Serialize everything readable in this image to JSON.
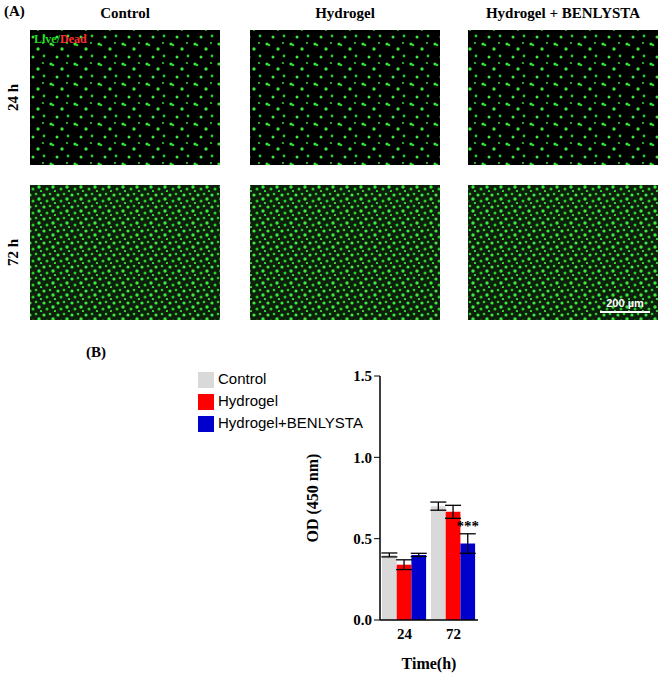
{
  "panel_a": {
    "label": "(A)",
    "columns": [
      "Control",
      "Hydrogel",
      "Hydrogel + BENLYSTA"
    ],
    "rows": [
      "24 h",
      "72 h"
    ],
    "stain_label": "Live/Dead",
    "scale_bar": "200 µm"
  },
  "chart_data": {
    "type": "bar",
    "label": "(B)",
    "categories": [
      "24",
      "72"
    ],
    "x_label": "Time(h)",
    "y_label": "OD (450 nm)",
    "ylim": [
      0,
      1.5
    ],
    "yticks": [
      {
        "value": 0,
        "label": "0.0"
      },
      {
        "value": 0.5,
        "label": "0.5"
      },
      {
        "value": 1,
        "label": "1.0"
      },
      {
        "value": 1.5,
        "label": "1.5"
      }
    ],
    "legend": "upper left",
    "series": [
      {
        "name": "Control",
        "color": "#d9d9d9",
        "values": [
          0.4,
          0.7
        ],
        "errors": [
          0.012,
          0.025
        ]
      },
      {
        "name": "Hydrogel",
        "color": "#ff0000",
        "values": [
          0.34,
          0.665
        ],
        "errors": [
          0.03,
          0.04
        ]
      },
      {
        "name": "Hydrogel+BENLYSTA",
        "color": "#0000cc",
        "values": [
          0.4,
          0.47
        ],
        "errors": [
          0.01,
          0.06
        ]
      }
    ],
    "annotations": [
      {
        "text": "***",
        "category": "72",
        "series": "Hydrogel+BENLYSTA"
      }
    ]
  }
}
